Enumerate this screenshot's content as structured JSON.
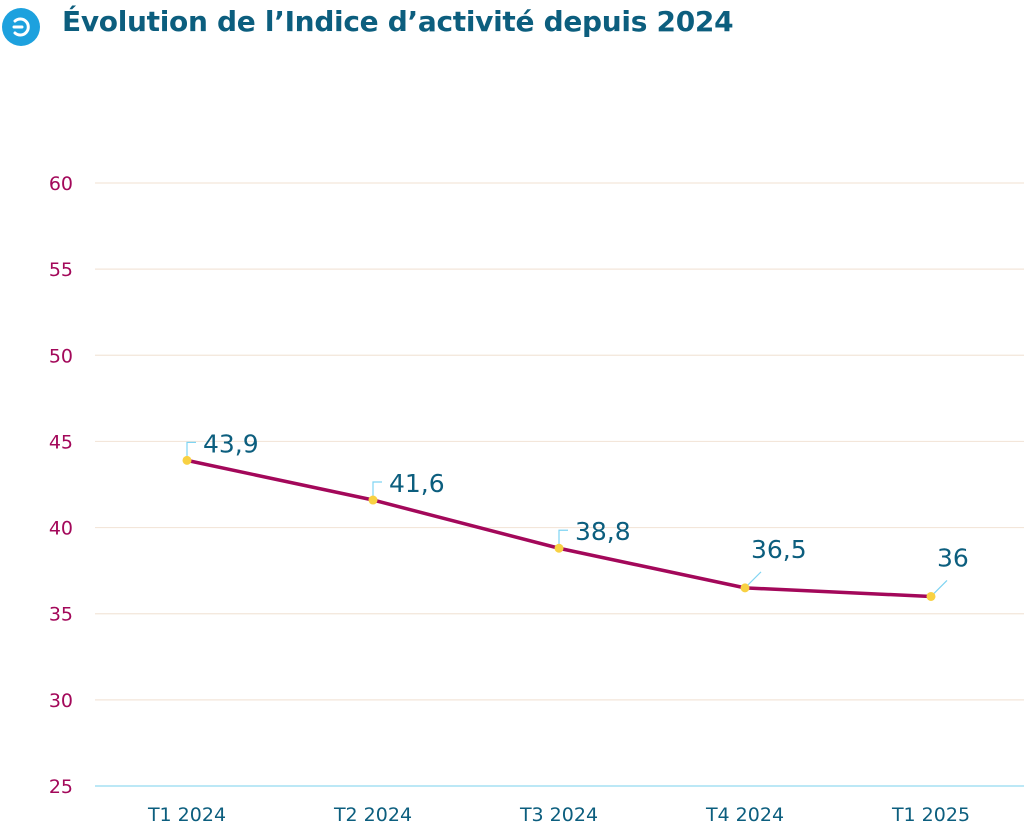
{
  "title": "Évolution de l’Indice d’activité depuis 2024",
  "icon": "arrow-circle-icon",
  "colors": {
    "title": "#0c5e7e",
    "icon_bg": "#1da1de",
    "line": "#a3085a",
    "marker": "#f8d143",
    "ytick": "#a3085a",
    "xtick": "#0c5e7e",
    "label": "#0c5e7e",
    "leader": "#7fd4f2",
    "grid": "#f3e6da",
    "baseline": "#a6e0f4"
  },
  "chart_data": {
    "type": "line",
    "categories": [
      "T1 2024",
      "T2 2024",
      "T3 2024",
      "T4 2024",
      "T1 2025"
    ],
    "series": [
      {
        "values": [
          43.9,
          41.6,
          38.8,
          36.5,
          36
        ]
      }
    ],
    "data_labels": [
      "43,9",
      "41,6",
      "38,8",
      "36,5",
      "36"
    ],
    "yticks": [
      "25",
      "30",
      "35",
      "40",
      "45",
      "50",
      "55",
      "60"
    ],
    "ylim": [
      25,
      60
    ],
    "grid": true,
    "legend": "none"
  }
}
